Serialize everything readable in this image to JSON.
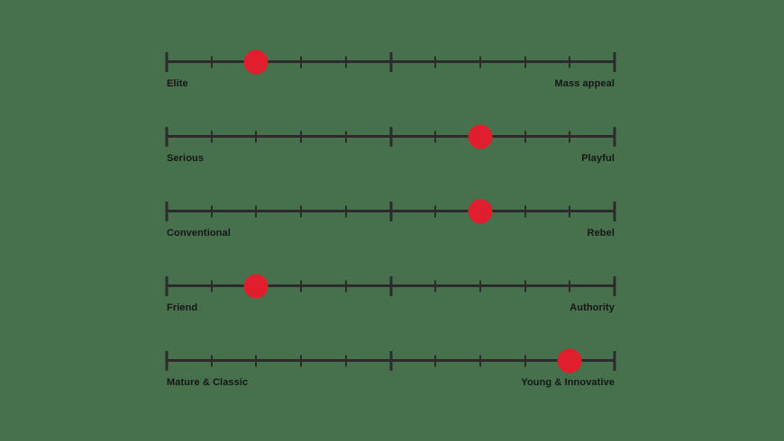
{
  "colors": {
    "background": "#47714d",
    "line": "#2b2b2b",
    "marker": "#e01e2d",
    "text": "#161616"
  },
  "chart_data": {
    "type": "scatter",
    "subtype": "bipolar-slider-scales",
    "scale_range": [
      0,
      10
    ],
    "tick_count": 11,
    "major_tick_indices": [
      0,
      5,
      10
    ],
    "grid": false,
    "rows": [
      {
        "left_label": "Elite",
        "right_label": "Mass appeal",
        "value": 2
      },
      {
        "left_label": "Serious",
        "right_label": "Playful",
        "value": 7
      },
      {
        "left_label": "Conventional",
        "right_label": "Rebel",
        "value": 7
      },
      {
        "left_label": "Friend",
        "right_label": "Authority",
        "value": 2
      },
      {
        "left_label": "Mature & Classic",
        "right_label": "Young & Innovative",
        "value": 9
      }
    ]
  }
}
